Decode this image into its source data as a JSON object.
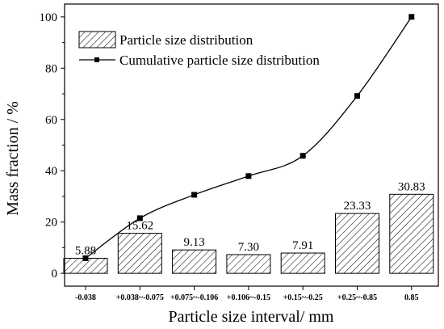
{
  "chart_data": {
    "type": "bar",
    "categories": [
      "-0.038",
      "+0.038~-0.075",
      "+0.075~-0.106",
      "+0.106~-0.15",
      "+0.15~-0.25",
      "+0.25~-0.85",
      "0.85"
    ],
    "series": [
      {
        "name": "Particle size distribution",
        "type": "bar",
        "values": [
          5.88,
          15.62,
          9.13,
          7.3,
          7.91,
          23.33,
          30.83
        ],
        "labels": [
          "5.88",
          "15.62",
          "9.13",
          "7.30",
          "7.91",
          "23.33",
          "30.83"
        ]
      },
      {
        "name": "Cumulative particle size distribution",
        "type": "line",
        "values": [
          5.88,
          21.5,
          30.63,
          37.93,
          45.84,
          69.17,
          100.0
        ]
      }
    ],
    "xlabel": "Particle size interval/ mm",
    "ylabel": "Mass fraction / %",
    "ylim": [
      -5,
      105
    ],
    "yticks": [
      0,
      20,
      40,
      60,
      80,
      100
    ],
    "legend_position": "top-left",
    "grid": false
  }
}
